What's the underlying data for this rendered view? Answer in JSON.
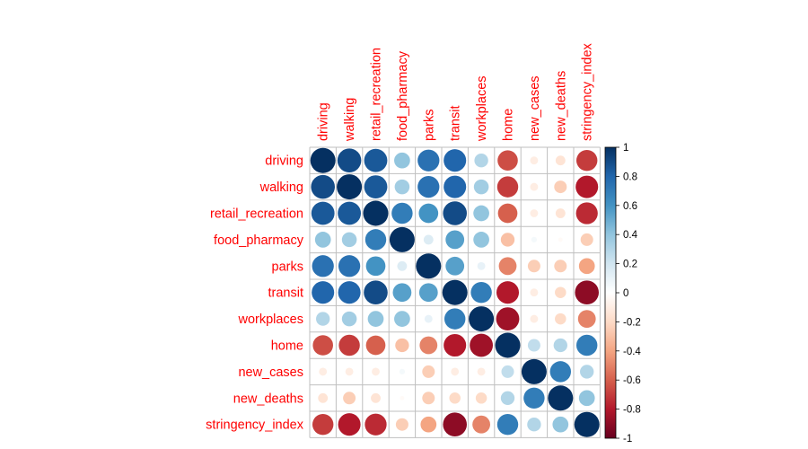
{
  "chart_data": {
    "type": "heatmap",
    "style": "corrplot-circle",
    "variables": [
      "driving",
      "walking",
      "retail_recreation",
      "food_pharmacy",
      "parks",
      "transit",
      "workplaces",
      "home",
      "new_cases",
      "new_deaths",
      "stringency_index"
    ],
    "matrix": [
      [
        1.0,
        0.9,
        0.85,
        0.4,
        0.75,
        0.8,
        0.3,
        -0.65,
        -0.1,
        -0.15,
        -0.7
      ],
      [
        0.9,
        1.0,
        0.85,
        0.35,
        0.75,
        0.8,
        0.35,
        -0.7,
        -0.1,
        -0.25,
        -0.8
      ],
      [
        0.85,
        0.85,
        1.0,
        0.7,
        0.6,
        0.9,
        0.4,
        -0.6,
        -0.1,
        -0.15,
        -0.75
      ],
      [
        0.4,
        0.35,
        0.7,
        1.0,
        0.15,
        0.55,
        0.4,
        -0.3,
        0.05,
        -0.03,
        -0.25
      ],
      [
        0.75,
        0.75,
        0.6,
        0.15,
        1.0,
        0.55,
        0.1,
        -0.5,
        -0.25,
        -0.25,
        -0.4
      ],
      [
        0.8,
        0.8,
        0.9,
        0.55,
        0.55,
        1.0,
        0.7,
        -0.8,
        -0.1,
        -0.2,
        -0.9
      ],
      [
        0.3,
        0.35,
        0.4,
        0.4,
        0.1,
        0.7,
        1.0,
        -0.85,
        -0.1,
        -0.2,
        -0.5
      ],
      [
        -0.65,
        -0.7,
        -0.6,
        -0.3,
        -0.5,
        -0.8,
        -0.85,
        1.0,
        0.25,
        0.3,
        0.7
      ],
      [
        -0.1,
        -0.1,
        -0.1,
        0.05,
        -0.25,
        -0.1,
        -0.1,
        0.25,
        1.0,
        0.7,
        0.3
      ],
      [
        -0.15,
        -0.25,
        -0.15,
        -0.03,
        -0.25,
        -0.2,
        -0.2,
        0.3,
        0.7,
        1.0,
        0.4
      ],
      [
        -0.7,
        -0.8,
        -0.75,
        -0.25,
        -0.4,
        -0.9,
        -0.5,
        0.7,
        0.3,
        0.4,
        1.0
      ]
    ],
    "colorbar": {
      "range": [
        -1,
        1
      ],
      "ticks": [
        "1",
        "0.8",
        "0.6",
        "0.4",
        "0.2",
        "0",
        "-0.2",
        "-0.4",
        "-0.6",
        "-0.8",
        "-1"
      ],
      "tick_values": [
        1,
        0.8,
        0.6,
        0.4,
        0.2,
        0,
        -0.2,
        -0.4,
        -0.6,
        -0.8,
        -1
      ],
      "colors": [
        "#67001F",
        "#B2182B",
        "#D6604D",
        "#F4A582",
        "#FDDBC7",
        "#FFFFFF",
        "#D1E5F0",
        "#92C5DE",
        "#4393C3",
        "#2166AC",
        "#053061"
      ]
    },
    "label_color": "#ff0000",
    "grid_color": "#bfbfbf",
    "title": "",
    "xlabel": "",
    "ylabel": ""
  }
}
